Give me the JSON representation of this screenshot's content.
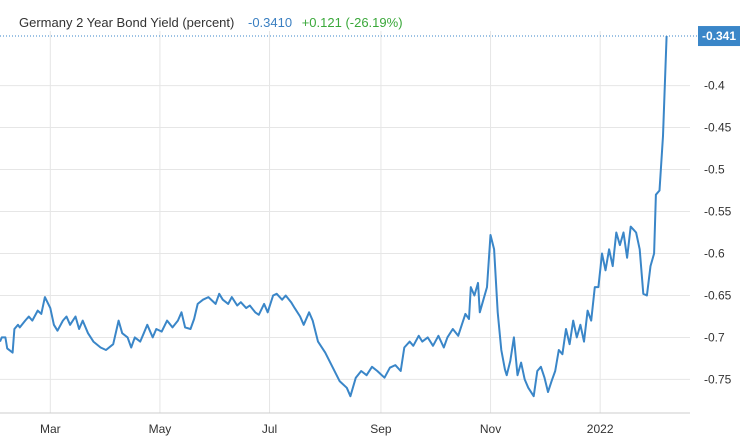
{
  "legend": {
    "name": "Germany 2 Year Bond Yield (percent)",
    "value": "-0.3410",
    "change": "+0.121 (-26.19%)"
  },
  "colors": {
    "line": "#3a86c8",
    "grid": "#e6e6e6",
    "badge": "#3a86c8",
    "change": "#3aa83a"
  },
  "chart_data": {
    "type": "line",
    "title": "",
    "xlabel": "",
    "ylabel": "",
    "ylim": [
      -0.79,
      -0.335
    ],
    "y_ticks": [
      -0.4,
      -0.45,
      -0.5,
      -0.55,
      -0.6,
      -0.65,
      -0.7,
      -0.75
    ],
    "y_tick_labels": [
      "-0.4",
      "-0.45",
      "-0.5",
      "-0.55",
      "-0.6",
      "-0.65",
      "-0.7",
      "-0.75"
    ],
    "x_ticks": [
      {
        "label": "Mar",
        "date": "2021-03-01"
      },
      {
        "label": "May",
        "date": "2021-05-01"
      },
      {
        "label": "Jul",
        "date": "2021-07-01"
      },
      {
        "label": "Sep",
        "date": "2021-09-01"
      },
      {
        "label": "Nov",
        "date": "2021-11-01"
      },
      {
        "label": "2022",
        "date": "2022-01-01"
      }
    ],
    "xlim": [
      "2021-02-01",
      "2022-02-20"
    ],
    "grid": true,
    "last_value_label": "-0.341",
    "series": [
      {
        "name": "Germany 2 Year Bond Yield",
        "points": [
          [
            "2021-02-01",
            -0.705
          ],
          [
            "2021-02-02",
            -0.7
          ],
          [
            "2021-02-04",
            -0.7
          ],
          [
            "2021-02-05",
            -0.713
          ],
          [
            "2021-02-08",
            -0.718
          ],
          [
            "2021-02-09",
            -0.69
          ],
          [
            "2021-02-11",
            -0.685
          ],
          [
            "2021-02-12",
            -0.688
          ],
          [
            "2021-02-15",
            -0.68
          ],
          [
            "2021-02-17",
            -0.675
          ],
          [
            "2021-02-19",
            -0.68
          ],
          [
            "2021-02-22",
            -0.668
          ],
          [
            "2021-02-24",
            -0.672
          ],
          [
            "2021-02-26",
            -0.652
          ],
          [
            "2021-03-01",
            -0.665
          ],
          [
            "2021-03-03",
            -0.685
          ],
          [
            "2021-03-05",
            -0.692
          ],
          [
            "2021-03-08",
            -0.68
          ],
          [
            "2021-03-10",
            -0.675
          ],
          [
            "2021-03-12",
            -0.685
          ],
          [
            "2021-03-15",
            -0.675
          ],
          [
            "2021-03-17",
            -0.69
          ],
          [
            "2021-03-19",
            -0.68
          ],
          [
            "2021-03-22",
            -0.695
          ],
          [
            "2021-03-25",
            -0.705
          ],
          [
            "2021-03-29",
            -0.712
          ],
          [
            "2021-04-01",
            -0.715
          ],
          [
            "2021-04-05",
            -0.708
          ],
          [
            "2021-04-08",
            -0.68
          ],
          [
            "2021-04-10",
            -0.695
          ],
          [
            "2021-04-13",
            -0.7
          ],
          [
            "2021-04-15",
            -0.712
          ],
          [
            "2021-04-17",
            -0.7
          ],
          [
            "2021-04-20",
            -0.705
          ],
          [
            "2021-04-22",
            -0.695
          ],
          [
            "2021-04-24",
            -0.685
          ],
          [
            "2021-04-27",
            -0.7
          ],
          [
            "2021-04-29",
            -0.69
          ],
          [
            "2021-05-02",
            -0.693
          ],
          [
            "2021-05-05",
            -0.68
          ],
          [
            "2021-05-08",
            -0.688
          ],
          [
            "2021-05-11",
            -0.68
          ],
          [
            "2021-05-13",
            -0.67
          ],
          [
            "2021-05-15",
            -0.688
          ],
          [
            "2021-05-18",
            -0.69
          ],
          [
            "2021-05-20",
            -0.678
          ],
          [
            "2021-05-22",
            -0.66
          ],
          [
            "2021-05-25",
            -0.655
          ],
          [
            "2021-05-28",
            -0.652
          ],
          [
            "2021-06-01",
            -0.66
          ],
          [
            "2021-06-03",
            -0.648
          ],
          [
            "2021-06-05",
            -0.655
          ],
          [
            "2021-06-08",
            -0.66
          ],
          [
            "2021-06-10",
            -0.652
          ],
          [
            "2021-06-13",
            -0.662
          ],
          [
            "2021-06-15",
            -0.658
          ],
          [
            "2021-06-18",
            -0.665
          ],
          [
            "2021-06-20",
            -0.662
          ],
          [
            "2021-06-23",
            -0.67
          ],
          [
            "2021-06-25",
            -0.673
          ],
          [
            "2021-06-28",
            -0.66
          ],
          [
            "2021-06-30",
            -0.67
          ],
          [
            "2021-07-03",
            -0.65
          ],
          [
            "2021-07-05",
            -0.648
          ],
          [
            "2021-07-08",
            -0.655
          ],
          [
            "2021-07-10",
            -0.65
          ],
          [
            "2021-07-13",
            -0.658
          ],
          [
            "2021-07-15",
            -0.665
          ],
          [
            "2021-07-18",
            -0.675
          ],
          [
            "2021-07-20",
            -0.685
          ],
          [
            "2021-07-23",
            -0.67
          ],
          [
            "2021-07-25",
            -0.68
          ],
          [
            "2021-07-28",
            -0.705
          ],
          [
            "2021-08-01",
            -0.718
          ],
          [
            "2021-08-05",
            -0.735
          ],
          [
            "2021-08-09",
            -0.752
          ],
          [
            "2021-08-13",
            -0.76
          ],
          [
            "2021-08-15",
            -0.77
          ],
          [
            "2021-08-18",
            -0.748
          ],
          [
            "2021-08-21",
            -0.74
          ],
          [
            "2021-08-24",
            -0.745
          ],
          [
            "2021-08-27",
            -0.735
          ],
          [
            "2021-08-30",
            -0.74
          ],
          [
            "2021-09-03",
            -0.748
          ],
          [
            "2021-09-06",
            -0.736
          ],
          [
            "2021-09-09",
            -0.733
          ],
          [
            "2021-09-12",
            -0.74
          ],
          [
            "2021-09-14",
            -0.712
          ],
          [
            "2021-09-17",
            -0.705
          ],
          [
            "2021-09-19",
            -0.71
          ],
          [
            "2021-09-22",
            -0.698
          ],
          [
            "2021-09-24",
            -0.705
          ],
          [
            "2021-09-27",
            -0.7
          ],
          [
            "2021-09-30",
            -0.71
          ],
          [
            "2021-10-03",
            -0.698
          ],
          [
            "2021-10-06",
            -0.712
          ],
          [
            "2021-10-08",
            -0.7
          ],
          [
            "2021-10-11",
            -0.69
          ],
          [
            "2021-10-14",
            -0.698
          ],
          [
            "2021-10-16",
            -0.685
          ],
          [
            "2021-10-18",
            -0.672
          ],
          [
            "2021-10-20",
            -0.678
          ],
          [
            "2021-10-21",
            -0.64
          ],
          [
            "2021-10-23",
            -0.65
          ],
          [
            "2021-10-25",
            -0.635
          ],
          [
            "2021-10-26",
            -0.67
          ],
          [
            "2021-10-28",
            -0.655
          ],
          [
            "2021-10-30",
            -0.64
          ],
          [
            "2021-11-01",
            -0.578
          ],
          [
            "2021-11-03",
            -0.595
          ],
          [
            "2021-11-05",
            -0.67
          ],
          [
            "2021-11-07",
            -0.715
          ],
          [
            "2021-11-09",
            -0.738
          ],
          [
            "2021-11-10",
            -0.745
          ],
          [
            "2021-11-12",
            -0.728
          ],
          [
            "2021-11-14",
            -0.7
          ],
          [
            "2021-11-16",
            -0.745
          ],
          [
            "2021-11-18",
            -0.73
          ],
          [
            "2021-11-20",
            -0.75
          ],
          [
            "2021-11-22",
            -0.76
          ],
          [
            "2021-11-25",
            -0.77
          ],
          [
            "2021-11-27",
            -0.74
          ],
          [
            "2021-11-29",
            -0.735
          ],
          [
            "2021-12-01",
            -0.748
          ],
          [
            "2021-12-03",
            -0.765
          ],
          [
            "2021-12-05",
            -0.752
          ],
          [
            "2021-12-07",
            -0.74
          ],
          [
            "2021-12-09",
            -0.715
          ],
          [
            "2021-12-11",
            -0.72
          ],
          [
            "2021-12-13",
            -0.69
          ],
          [
            "2021-12-15",
            -0.708
          ],
          [
            "2021-12-17",
            -0.68
          ],
          [
            "2021-12-19",
            -0.7
          ],
          [
            "2021-12-21",
            -0.685
          ],
          [
            "2021-12-23",
            -0.705
          ],
          [
            "2021-12-25",
            -0.668
          ],
          [
            "2021-12-27",
            -0.68
          ],
          [
            "2021-12-29",
            -0.64
          ],
          [
            "2021-12-31",
            -0.64
          ],
          [
            "2022-01-02",
            -0.6
          ],
          [
            "2022-01-04",
            -0.62
          ],
          [
            "2022-01-06",
            -0.595
          ],
          [
            "2022-01-08",
            -0.615
          ],
          [
            "2022-01-10",
            -0.575
          ],
          [
            "2022-01-12",
            -0.59
          ],
          [
            "2022-01-14",
            -0.575
          ],
          [
            "2022-01-16",
            -0.605
          ],
          [
            "2022-01-18",
            -0.568
          ],
          [
            "2022-01-21",
            -0.575
          ],
          [
            "2022-01-23",
            -0.595
          ],
          [
            "2022-01-25",
            -0.648
          ],
          [
            "2022-01-27",
            -0.65
          ],
          [
            "2022-01-29",
            -0.615
          ],
          [
            "2022-01-31",
            -0.6
          ],
          [
            "2022-02-01",
            -0.53
          ],
          [
            "2022-02-03",
            -0.525
          ],
          [
            "2022-02-05",
            -0.46
          ],
          [
            "2022-02-07",
            -0.341
          ]
        ]
      }
    ]
  }
}
